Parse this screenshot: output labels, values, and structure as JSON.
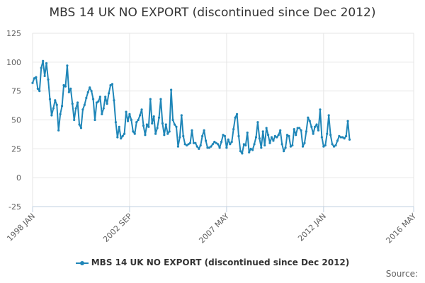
{
  "chart_data": {
    "type": "line",
    "title": "MBS 14 UK NO EXPORT (discontinued since Dec 2012)",
    "xlabel": "",
    "ylabel": "",
    "ylim": [
      -25,
      125
    ],
    "yticks": [
      -25,
      0,
      25,
      50,
      75,
      100,
      125
    ],
    "xlim": [
      "1998-01",
      "2016-05"
    ],
    "xticks": [
      {
        "label": "1998 JAN",
        "x": "1998-01"
      },
      {
        "label": "2002 SEP",
        "x": "2002-09"
      },
      {
        "label": "2007 MAY",
        "x": "2007-05"
      },
      {
        "label": "2012 JAN",
        "x": "2012-01"
      },
      {
        "label": "2016 MAY",
        "x": "2016-05"
      }
    ],
    "grid": true,
    "legend": "bottom",
    "series": [
      {
        "name": "MBS 14 UK NO EXPORT (discontinued since Dec 2012)",
        "color": "#1f86b8",
        "start": "1998-01",
        "values": [
          82,
          86,
          87,
          77,
          75,
          95,
          101,
          88,
          99,
          85,
          68,
          54,
          60,
          67,
          63,
          41,
          55,
          62,
          80,
          79,
          97,
          74,
          77,
          64,
          50,
          60,
          65,
          46,
          43,
          59,
          63,
          69,
          74,
          78,
          75,
          68,
          50,
          65,
          66,
          70,
          55,
          60,
          70,
          64,
          73,
          80,
          81,
          67,
          48,
          35,
          44,
          34,
          36,
          38,
          57,
          49,
          55,
          50,
          40,
          38,
          48,
          50,
          54,
          59,
          45,
          37,
          46,
          44,
          68,
          47,
          53,
          38,
          43,
          52,
          68,
          47,
          37,
          46,
          38,
          40,
          76,
          50,
          46,
          44,
          27,
          35,
          54,
          36,
          29,
          28,
          29,
          30,
          41,
          30,
          30,
          27,
          25,
          28,
          36,
          41,
          32,
          26,
          26,
          27,
          29,
          31,
          30,
          29,
          26,
          31,
          37,
          36,
          26,
          33,
          29,
          31,
          42,
          52,
          55,
          36,
          23,
          21,
          29,
          28,
          39,
          22,
          25,
          24,
          29,
          35,
          48,
          34,
          26,
          40,
          28,
          43,
          37,
          30,
          35,
          32,
          36,
          35,
          37,
          41,
          29,
          23,
          26,
          37,
          36,
          27,
          28,
          42,
          37,
          43,
          43,
          41,
          27,
          30,
          40,
          52,
          49,
          44,
          38,
          44,
          46,
          41,
          59,
          35,
          27,
          28,
          38,
          54,
          37,
          29,
          27,
          28,
          32,
          36,
          35,
          35,
          34,
          36,
          49,
          33
        ]
      }
    ]
  },
  "legend": {
    "label": "MBS 14 UK NO EXPORT (discontinued since Dec 2012)"
  },
  "credits": {
    "text": "Source:"
  }
}
